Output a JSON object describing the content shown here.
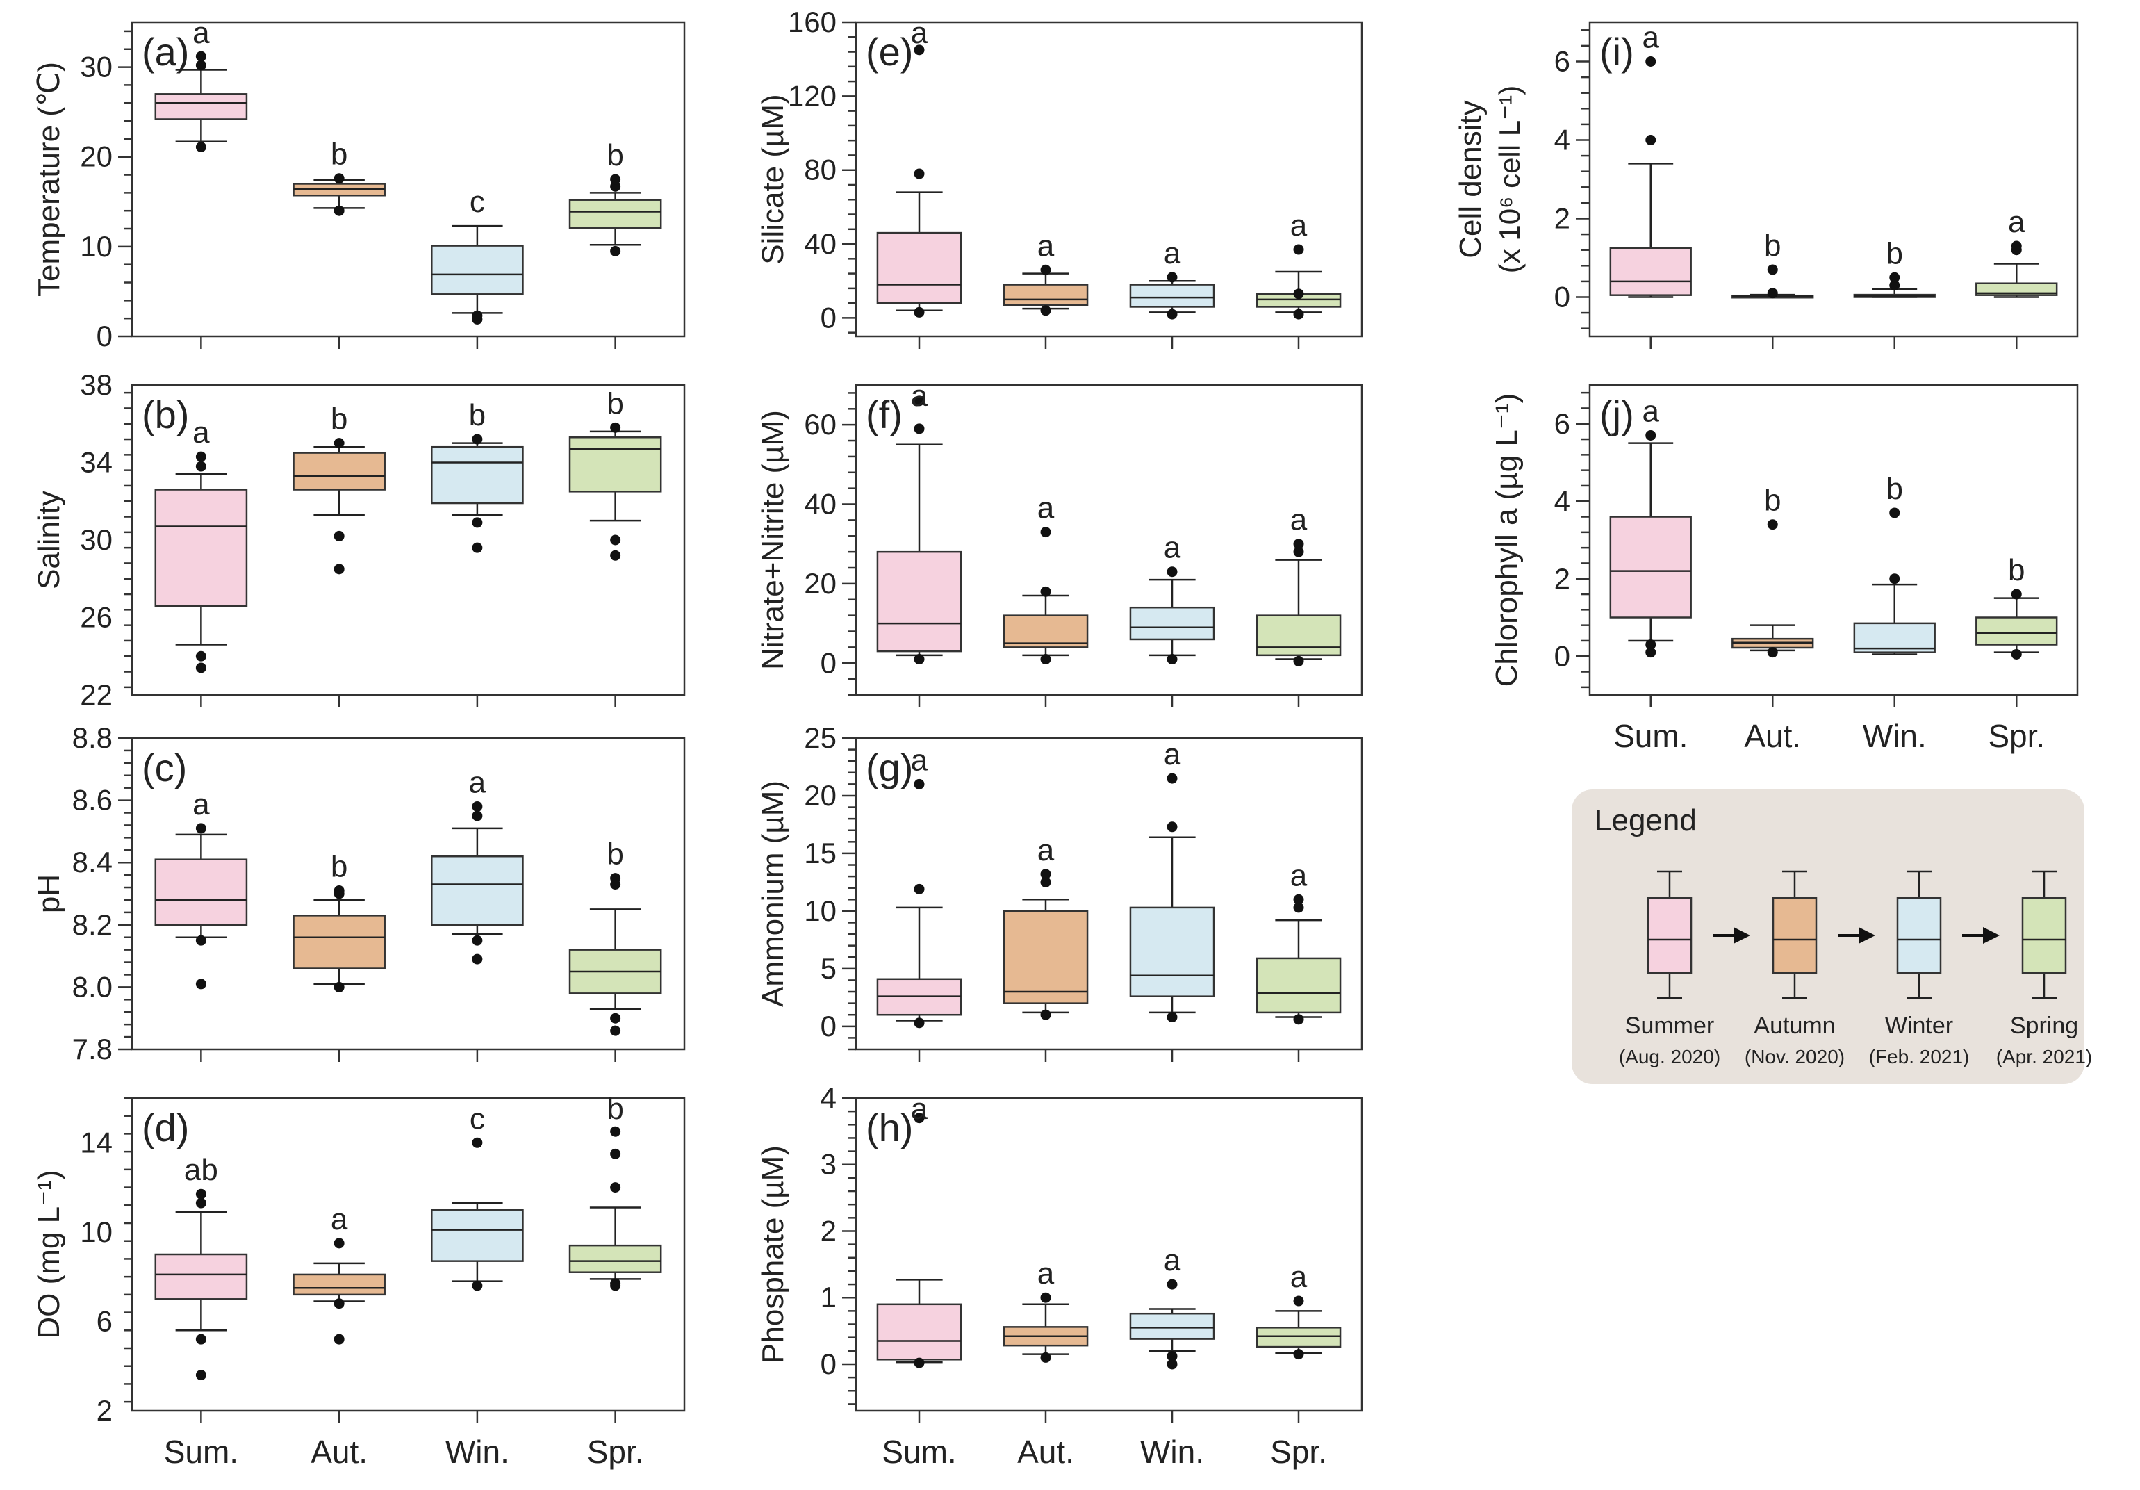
{
  "colors": {
    "Sum.": "#f6d2df",
    "Aut.": "#e6b992",
    "Win.": "#d6e9f1",
    "Spr.": "#d4e4b8"
  },
  "chart_data": [
    {
      "type": "box",
      "panel": "(a)",
      "ylabel": "Temperature (℃)",
      "ylim": [
        0,
        35
      ],
      "yticks": [
        0,
        10,
        20,
        30
      ],
      "categories": [
        "Sum.",
        "Aut.",
        "Win.",
        "Spr."
      ],
      "show_xticks": false,
      "boxes": [
        {
          "q1": 24.2,
          "median": 26.0,
          "q3": 27.0,
          "wlow": 21.7,
          "whigh": 29.7,
          "outliers": [
            21.1,
            30.2,
            31.2
          ],
          "letter": "a"
        },
        {
          "q1": 15.7,
          "median": 16.4,
          "q3": 17.0,
          "wlow": 14.3,
          "whigh": 17.4,
          "outliers": [
            14.0,
            17.6
          ],
          "letter": "b"
        },
        {
          "q1": 4.7,
          "median": 6.9,
          "q3": 10.1,
          "wlow": 2.6,
          "whigh": 12.3,
          "outliers": [
            1.9,
            2.3
          ],
          "letter": "c"
        },
        {
          "q1": 12.1,
          "median": 13.9,
          "q3": 15.2,
          "wlow": 10.2,
          "whigh": 16.0,
          "outliers": [
            9.5,
            16.7,
            17.5
          ],
          "letter": "b"
        }
      ]
    },
    {
      "type": "box",
      "panel": "(b)",
      "ylabel": "Salinity",
      "ylim": [
        22,
        38
      ],
      "yticks": [
        22,
        26,
        30,
        34,
        38
      ],
      "categories": [
        "Sum.",
        "Aut.",
        "Win.",
        "Spr."
      ],
      "show_xticks": false,
      "boxes": [
        {
          "q1": 26.6,
          "median": 30.7,
          "q3": 32.6,
          "wlow": 24.6,
          "whigh": 33.4,
          "outliers": [
            24.0,
            23.4,
            33.8,
            34.3
          ],
          "letter": "a"
        },
        {
          "q1": 32.6,
          "median": 33.3,
          "q3": 34.5,
          "wlow": 31.3,
          "whigh": 34.8,
          "outliers": [
            30.2,
            28.5,
            35.0
          ],
          "letter": "b"
        },
        {
          "q1": 31.9,
          "median": 34.0,
          "q3": 34.8,
          "wlow": 31.3,
          "whigh": 35.0,
          "outliers": [
            30.9,
            29.6,
            35.2
          ],
          "letter": "b"
        },
        {
          "q1": 32.5,
          "median": 34.7,
          "q3": 35.3,
          "wlow": 31.0,
          "whigh": 35.6,
          "outliers": [
            30.0,
            29.2,
            35.8
          ],
          "letter": "b"
        }
      ]
    },
    {
      "type": "box",
      "panel": "(c)",
      "ylabel": "pH",
      "ylim": [
        7.8,
        8.8
      ],
      "yticks": [
        7.8,
        8.0,
        8.2,
        8.4,
        8.6,
        8.8
      ],
      "categories": [
        "Sum.",
        "Aut.",
        "Win.",
        "Spr."
      ],
      "show_xticks": false,
      "boxes": [
        {
          "q1": 8.2,
          "median": 8.28,
          "q3": 8.41,
          "wlow": 8.16,
          "whigh": 8.49,
          "outliers": [
            8.15,
            8.01,
            8.51
          ],
          "letter": "a"
        },
        {
          "q1": 8.06,
          "median": 8.16,
          "q3": 8.23,
          "wlow": 8.01,
          "whigh": 8.28,
          "outliers": [
            8.0,
            8.3,
            8.31
          ],
          "letter": "b"
        },
        {
          "q1": 8.2,
          "median": 8.33,
          "q3": 8.42,
          "wlow": 8.17,
          "whigh": 8.51,
          "outliers": [
            8.15,
            8.09,
            8.55,
            8.58
          ],
          "letter": "a"
        },
        {
          "q1": 7.98,
          "median": 8.05,
          "q3": 8.12,
          "wlow": 7.93,
          "whigh": 8.25,
          "outliers": [
            7.9,
            7.86,
            8.33,
            8.35
          ],
          "letter": "b"
        }
      ]
    },
    {
      "type": "box",
      "panel": "(d)",
      "ylabel": "DO (mg L⁻¹)",
      "ylim": [
        2,
        16
      ],
      "yticks": [
        2,
        6,
        10,
        14
      ],
      "categories": [
        "Sum.",
        "Aut.",
        "Win.",
        "Spr."
      ],
      "show_xticks": true,
      "boxes": [
        {
          "q1": 7.0,
          "median": 8.1,
          "q3": 9.0,
          "wlow": 5.6,
          "whigh": 10.9,
          "outliers": [
            5.2,
            3.6,
            11.3,
            11.7
          ],
          "letter": "ab"
        },
        {
          "q1": 7.2,
          "median": 7.5,
          "q3": 8.1,
          "wlow": 6.9,
          "whigh": 8.6,
          "outliers": [
            6.8,
            5.2,
            9.5
          ],
          "letter": "a"
        },
        {
          "q1": 8.7,
          "median": 10.1,
          "q3": 11.0,
          "wlow": 7.8,
          "whigh": 11.3,
          "outliers": [
            7.6,
            14.0
          ],
          "letter": "c"
        },
        {
          "q1": 8.2,
          "median": 8.7,
          "q3": 9.4,
          "wlow": 7.9,
          "whigh": 11.1,
          "outliers": [
            7.7,
            7.6,
            12.0,
            13.5,
            14.5
          ],
          "letter": "b"
        }
      ]
    },
    {
      "type": "box",
      "panel": "(e)",
      "ylabel": "Silicate (µM)",
      "ylim": [
        -10,
        160
      ],
      "yticks": [
        0,
        40,
        80,
        120,
        160
      ],
      "categories": [
        "Sum.",
        "Aut.",
        "Win.",
        "Spr."
      ],
      "show_xticks": false,
      "boxes": [
        {
          "q1": 8,
          "median": 18,
          "q3": 46,
          "wlow": 4,
          "whigh": 68,
          "outliers": [
            3,
            78,
            145
          ],
          "letter": "a"
        },
        {
          "q1": 7,
          "median": 10,
          "q3": 18,
          "wlow": 5,
          "whigh": 24,
          "outliers": [
            4,
            26
          ],
          "letter": "a"
        },
        {
          "q1": 6,
          "median": 11,
          "q3": 18,
          "wlow": 3,
          "whigh": 20,
          "outliers": [
            2,
            22
          ],
          "letter": "a"
        },
        {
          "q1": 6,
          "median": 10,
          "q3": 13,
          "wlow": 3,
          "whigh": 25,
          "outliers": [
            2,
            13,
            37
          ],
          "letter": "a"
        }
      ]
    },
    {
      "type": "box",
      "panel": "(f)",
      "ylabel": "Nitrate+Nitrite (µM)",
      "ylim": [
        -8,
        70
      ],
      "yticks": [
        0,
        20,
        40,
        60
      ],
      "categories": [
        "Sum.",
        "Aut.",
        "Win.",
        "Spr."
      ],
      "show_xticks": false,
      "boxes": [
        {
          "q1": 3,
          "median": 10,
          "q3": 28,
          "wlow": 2,
          "whigh": 55,
          "outliers": [
            1,
            59,
            66
          ],
          "letter": "a"
        },
        {
          "q1": 4,
          "median": 5,
          "q3": 12,
          "wlow": 2,
          "whigh": 17,
          "outliers": [
            1,
            18,
            33
          ],
          "letter": "a"
        },
        {
          "q1": 6,
          "median": 9,
          "q3": 14,
          "wlow": 2,
          "whigh": 21,
          "outliers": [
            1,
            23
          ],
          "letter": "a"
        },
        {
          "q1": 2,
          "median": 4,
          "q3": 12,
          "wlow": 1,
          "whigh": 26,
          "outliers": [
            0.5,
            28,
            30
          ],
          "letter": "a"
        }
      ]
    },
    {
      "type": "box",
      "panel": "(g)",
      "ylabel": "Ammonium (µM)",
      "ylim": [
        -2,
        25
      ],
      "yticks": [
        0,
        5,
        10,
        15,
        20,
        25
      ],
      "categories": [
        "Sum.",
        "Aut.",
        "Win.",
        "Spr."
      ],
      "show_xticks": false,
      "boxes": [
        {
          "q1": 1.0,
          "median": 2.6,
          "q3": 4.1,
          "wlow": 0.5,
          "whigh": 10.3,
          "outliers": [
            0.3,
            11.9,
            21.0
          ],
          "letter": "a"
        },
        {
          "q1": 2.0,
          "median": 3.0,
          "q3": 10.0,
          "wlow": 1.2,
          "whigh": 11.0,
          "outliers": [
            1.0,
            12.5,
            13.2
          ],
          "letter": "a"
        },
        {
          "q1": 2.6,
          "median": 4.4,
          "q3": 10.3,
          "wlow": 1.2,
          "whigh": 16.4,
          "outliers": [
            0.8,
            17.3,
            21.5
          ],
          "letter": "a"
        },
        {
          "q1": 1.2,
          "median": 2.9,
          "q3": 5.9,
          "wlow": 0.8,
          "whigh": 9.2,
          "outliers": [
            0.6,
            10.3,
            11.0
          ],
          "letter": "a"
        }
      ]
    },
    {
      "type": "box",
      "panel": "(h)",
      "ylabel": "Phosphate (µM)",
      "ylim": [
        -0.7,
        4
      ],
      "yticks": [
        0,
        1,
        2,
        3,
        4
      ],
      "categories": [
        "Sum.",
        "Aut.",
        "Win.",
        "Spr."
      ],
      "show_xticks": true,
      "boxes": [
        {
          "q1": 0.07,
          "median": 0.35,
          "q3": 0.9,
          "wlow": 0.03,
          "whigh": 1.27,
          "outliers": [
            0.02,
            3.7
          ],
          "letter": "a"
        },
        {
          "q1": 0.28,
          "median": 0.42,
          "q3": 0.56,
          "wlow": 0.15,
          "whigh": 0.9,
          "outliers": [
            0.1,
            1.0
          ],
          "letter": "a"
        },
        {
          "q1": 0.38,
          "median": 0.55,
          "q3": 0.76,
          "wlow": 0.2,
          "whigh": 0.83,
          "outliers": [
            0.12,
            0.0,
            1.2
          ],
          "letter": "a"
        },
        {
          "q1": 0.26,
          "median": 0.42,
          "q3": 0.55,
          "wlow": 0.17,
          "whigh": 0.8,
          "outliers": [
            0.15,
            0.95
          ],
          "letter": "a"
        }
      ]
    },
    {
      "type": "box",
      "panel": "(i)",
      "ylabel": "Cell density",
      "ylabel2": "(x 10⁶ cell L⁻¹)",
      "ylim": [
        -1,
        7
      ],
      "yticks": [
        0,
        2,
        4,
        6
      ],
      "categories": [
        "Sum.",
        "Aut.",
        "Win.",
        "Spr."
      ],
      "show_xticks": false,
      "boxes": [
        {
          "q1": 0.05,
          "median": 0.4,
          "q3": 1.25,
          "wlow": 0.0,
          "whigh": 3.4,
          "outliers": [
            4.0,
            6.0
          ],
          "letter": "a"
        },
        {
          "q1": 0.0,
          "median": 0.02,
          "q3": 0.04,
          "wlow": 0.0,
          "whigh": 0.06,
          "outliers": [
            0.1,
            0.7
          ],
          "letter": "b"
        },
        {
          "q1": 0.0,
          "median": 0.03,
          "q3": 0.06,
          "wlow": 0.0,
          "whigh": 0.2,
          "outliers": [
            0.3,
            0.5
          ],
          "letter": "b"
        },
        {
          "q1": 0.05,
          "median": 0.1,
          "q3": 0.35,
          "wlow": 0.0,
          "whigh": 0.85,
          "outliers": [
            1.2,
            1.3
          ],
          "letter": "a"
        }
      ]
    },
    {
      "type": "box",
      "panel": "(j)",
      "ylabel": "Chlorophyll a (µg L⁻¹)",
      "ylim": [
        -1,
        7
      ],
      "yticks": [
        0,
        2,
        4,
        6
      ],
      "categories": [
        "Sum.",
        "Aut.",
        "Win.",
        "Spr."
      ],
      "show_xticks": true,
      "boxes": [
        {
          "q1": 1.0,
          "median": 2.2,
          "q3": 3.6,
          "wlow": 0.4,
          "whigh": 5.5,
          "outliers": [
            0.3,
            0.1,
            5.7
          ],
          "letter": "a"
        },
        {
          "q1": 0.22,
          "median": 0.35,
          "q3": 0.45,
          "wlow": 0.15,
          "whigh": 0.8,
          "outliers": [
            0.1,
            3.4
          ],
          "letter": "b"
        },
        {
          "q1": 0.1,
          "median": 0.2,
          "q3": 0.85,
          "wlow": 0.05,
          "whigh": 1.85,
          "outliers": [
            2.0,
            3.7
          ],
          "letter": "b"
        },
        {
          "q1": 0.3,
          "median": 0.6,
          "q3": 1.0,
          "wlow": 0.1,
          "whigh": 1.5,
          "outliers": [
            0.05,
            1.6
          ],
          "letter": "b"
        }
      ]
    }
  ],
  "legend": {
    "title": "Legend",
    "items": [
      {
        "season": "Summer",
        "date": "(Aug. 2020)"
      },
      {
        "season": "Autumn",
        "date": "(Nov. 2020)"
      },
      {
        "season": "Winter",
        "date": "(Feb. 2021)"
      },
      {
        "season": "Spring",
        "date": "(Apr. 2021)"
      }
    ]
  }
}
